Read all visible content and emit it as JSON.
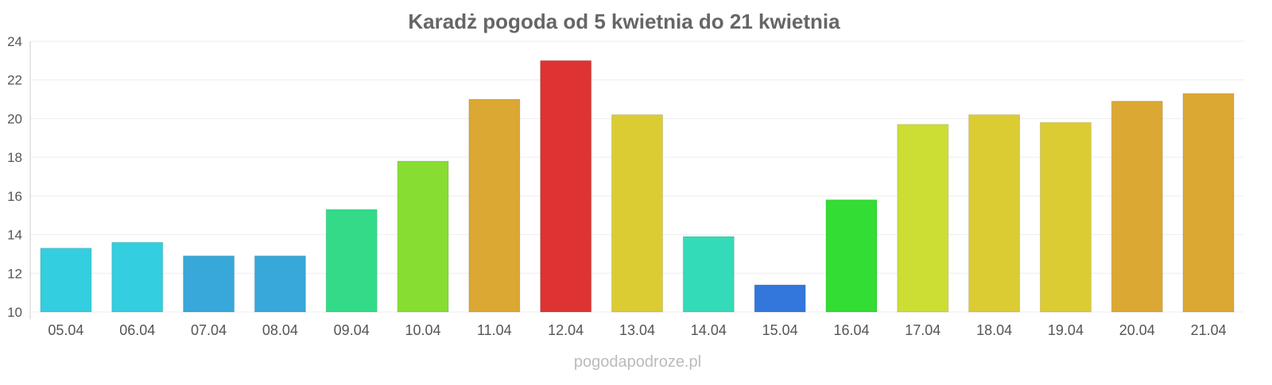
{
  "chart_data": {
    "type": "bar",
    "title": "Karadż pogoda od 5 kwietnia do 21 kwietnia",
    "xlabel": "",
    "ylabel": "",
    "ylim": [
      10,
      24
    ],
    "yticks": [
      10,
      12,
      14,
      16,
      18,
      20,
      22,
      24
    ],
    "grid": true,
    "categories": [
      "05.04",
      "06.04",
      "07.04",
      "08.04",
      "09.04",
      "10.04",
      "11.04",
      "12.04",
      "13.04",
      "14.04",
      "15.04",
      "16.04",
      "17.04",
      "18.04",
      "19.04",
      "20.04",
      "21.04"
    ],
    "values": [
      13.3,
      13.6,
      12.9,
      12.9,
      15.3,
      17.8,
      21.0,
      23.0,
      20.2,
      13.9,
      11.4,
      15.8,
      19.7,
      20.2,
      19.8,
      20.9,
      21.3
    ],
    "colors": [
      "#33cedf",
      "#33cedf",
      "#37a8d9",
      "#37a8d9",
      "#33db88",
      "#88dd33",
      "#dba833",
      "#dd3333",
      "#dccc33",
      "#33dbb8",
      "#3377dd",
      "#33dd33",
      "#ccdd33",
      "#dccc33",
      "#dccc33",
      "#dba833",
      "#dba833"
    ]
  },
  "watermark": "pogodapodroze.pl"
}
